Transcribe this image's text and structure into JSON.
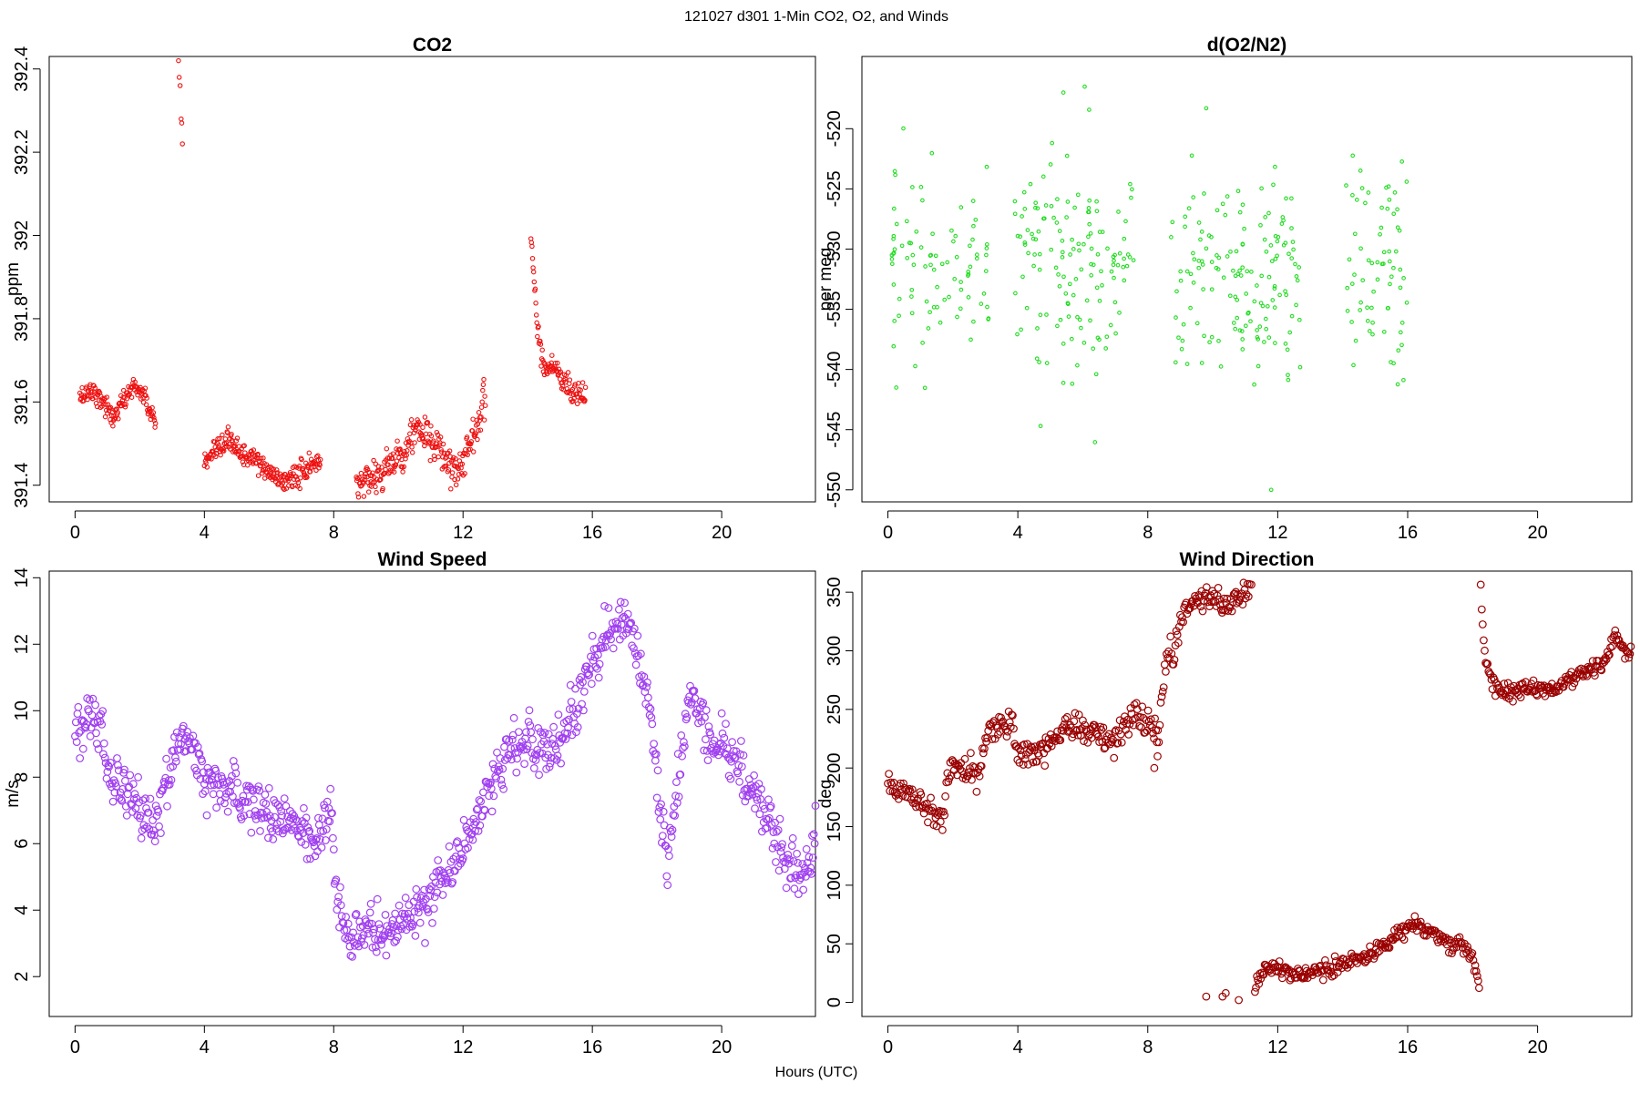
{
  "figure": {
    "title": "121027   d301   1-Min CO2, O2, and Winds",
    "xlabel": "Hours (UTC)"
  },
  "chart_data": [
    {
      "type": "scatter",
      "title": "CO2",
      "ylabel": "ppm",
      "xlim": [
        -0.8,
        22.9
      ],
      "ylim": [
        391.36,
        392.43
      ],
      "xticks": [
        0,
        4,
        8,
        12,
        16,
        20
      ],
      "yticks": [
        391.4,
        391.6,
        391.8,
        392.0,
        392.2,
        392.4
      ],
      "color": "#ee1111",
      "marker_r": 2.2,
      "segments": [
        {
          "x": [
            0.15,
            0.5,
            0.9,
            1.15,
            1.4,
            1.8,
            2.1,
            2.3,
            2.5
          ],
          "y": [
            391.61,
            391.63,
            391.6,
            391.56,
            391.59,
            391.64,
            391.62,
            391.58,
            391.55
          ],
          "noise": 0.012
        },
        {
          "x": [
            4.0,
            4.4,
            4.8,
            5.2,
            5.6,
            6.0,
            6.4,
            6.8,
            7.2,
            7.6
          ],
          "y": [
            391.45,
            391.48,
            391.51,
            391.47,
            391.46,
            391.43,
            391.41,
            391.42,
            391.44,
            391.46
          ],
          "noise": 0.013
        },
        {
          "x": [
            8.7,
            9.1,
            9.5,
            9.9,
            10.3,
            10.6,
            11.0,
            11.3,
            11.6,
            11.9,
            12.2,
            12.5,
            12.7
          ],
          "y": [
            391.4,
            391.42,
            391.43,
            391.46,
            391.5,
            391.54,
            391.5,
            391.48,
            391.45,
            391.44,
            391.5,
            391.56,
            391.62
          ],
          "noise": 0.022
        },
        {
          "x": [
            14.1,
            14.2,
            14.3,
            14.5,
            14.8,
            15.1,
            15.4,
            15.8
          ],
          "y": [
            392.0,
            391.9,
            391.78,
            391.68,
            391.69,
            391.65,
            391.63,
            391.61
          ],
          "noise": 0.015
        }
      ],
      "spikes": {
        "x": [
          3.2,
          3.22,
          3.25,
          3.28,
          3.3,
          3.32
        ],
        "y": [
          392.42,
          392.38,
          392.36,
          392.28,
          392.27,
          392.22
        ]
      }
    },
    {
      "type": "scatter",
      "title": "d(O2/N2)",
      "ylabel": "per meg",
      "xlim": [
        -0.8,
        22.9
      ],
      "ylim": [
        -551,
        -514
      ],
      "xticks": [
        0,
        4,
        8,
        12,
        16,
        20
      ],
      "yticks": [
        -520,
        -525,
        -530,
        -535,
        -540,
        -545,
        -550
      ],
      "color": "#22dd22",
      "marker_r": 1.8,
      "segments": [
        {
          "x": [
            0.1,
            3.2
          ],
          "center": -532,
          "spread": 5.5,
          "count": 90
        },
        {
          "x": [
            3.9,
            7.6
          ],
          "center": -531,
          "spread": 6.0,
          "count": 140
        },
        {
          "x": [
            8.7,
            12.7
          ],
          "center": -532,
          "spread": 6.0,
          "count": 150
        },
        {
          "x": [
            14.1,
            16.0
          ],
          "center": -532,
          "spread": 6.0,
          "count": 70
        }
      ],
      "outliers": {
        "x": [
          4.7,
          11.8,
          5.4,
          9.8
        ],
        "y": [
          -544.7,
          -550.0,
          -517.0,
          -518.3
        ]
      }
    },
    {
      "type": "scatter",
      "title": "Wind Speed",
      "ylabel": "m/s",
      "xlim": [
        -0.8,
        22.9
      ],
      "ylim": [
        0.8,
        14.2
      ],
      "xticks": [
        0,
        4,
        8,
        12,
        16,
        20
      ],
      "yticks": [
        2,
        4,
        6,
        8,
        10,
        12,
        14
      ],
      "color": "#a040f0",
      "marker_r": 3.8,
      "track": {
        "x": [
          0,
          0.5,
          0.8,
          1.0,
          1.5,
          2.0,
          2.5,
          3.0,
          3.3,
          3.6,
          4.0,
          5.0,
          6.0,
          6.5,
          7.0,
          7.5,
          7.9,
          8.1,
          8.5,
          9.0,
          9.5,
          10.0,
          10.5,
          11.0,
          11.5,
          12.0,
          12.5,
          13.0,
          13.5,
          14.0,
          14.5,
          15.0,
          15.5,
          16.0,
          16.5,
          17.0,
          17.5,
          17.8,
          18.0,
          18.3,
          18.6,
          19.0,
          19.3,
          19.6,
          20.0,
          20.5,
          21.0,
          21.5,
          22.0,
          22.5,
          22.9
        ],
        "y": [
          9.5,
          10.0,
          9.4,
          8.3,
          7.7,
          6.9,
          6.5,
          8.5,
          9.3,
          8.8,
          7.9,
          7.5,
          7.0,
          6.8,
          6.3,
          6.1,
          7.4,
          4.2,
          3.0,
          3.5,
          3.3,
          3.4,
          3.9,
          4.5,
          5.0,
          6.0,
          7.0,
          8.0,
          9.0,
          9.1,
          8.5,
          9.0,
          10.0,
          11.5,
          12.2,
          12.8,
          11.5,
          10.0,
          8.0,
          5.2,
          7.5,
          10.5,
          10.2,
          9.0,
          8.8,
          8.3,
          7.5,
          6.5,
          5.6,
          5.0,
          6.2
        ],
        "dx": 0.025,
        "noise": 0.38
      }
    },
    {
      "type": "scatter",
      "title": "Wind Direction",
      "ylabel": "deg",
      "xlim": [
        -0.8,
        22.9
      ],
      "ylim": [
        -12,
        368
      ],
      "xticks": [
        0,
        4,
        8,
        12,
        16,
        20
      ],
      "yticks": [
        0,
        50,
        100,
        150,
        200,
        250,
        300,
        350
      ],
      "color": "#9a0000",
      "marker_r": 3.8,
      "tracks": [
        {
          "x": [
            0,
            0.5,
            1.0,
            1.5,
            1.7,
            1.8,
            2.0,
            2.5,
            2.8,
            3.0,
            3.5,
            3.8,
            4.0,
            4.5,
            5.0,
            5.5,
            6.0,
            6.5,
            7.0,
            7.5,
            8.0,
            8.3,
            8.6,
            8.8,
            9.0,
            9.3,
            9.5,
            10.0,
            10.5,
            10.8,
            11.2
          ],
          "y": [
            185,
            180,
            172,
            162,
            158,
            190,
            202,
            198,
            195,
            228,
            236,
            240,
            215,
            210,
            222,
            238,
            232,
            228,
            226,
            245,
            242,
            232,
            300,
            295,
            325,
            342,
            345,
            345,
            340,
            345,
            355
          ],
          "dx": 0.03,
          "noise": 6
        },
        {
          "x": [
            11.3,
            11.6,
            12.0,
            12.5,
            13.0,
            13.5,
            14.0,
            14.5,
            15.0,
            15.5,
            16.0,
            16.3,
            16.8,
            17.3,
            17.8,
            18.0,
            18.2
          ],
          "y": [
            12,
            28,
            30,
            22,
            25,
            28,
            33,
            38,
            42,
            55,
            65,
            68,
            58,
            50,
            48,
            35,
            12
          ],
          "dx": 0.03,
          "noise": 3.5
        },
        {
          "x": [
            18.25,
            18.35,
            18.5,
            18.8,
            19.2,
            19.6,
            20.0,
            20.5,
            21.0,
            21.5,
            22.0,
            22.4,
            22.6,
            22.9
          ],
          "y": [
            355,
            300,
            278,
            265,
            265,
            270,
            268,
            266,
            275,
            283,
            288,
            315,
            302,
            298
          ],
          "dx": 0.03,
          "noise": 3.5
        }
      ],
      "outliers": {
        "x": [
          9.8,
          10.3,
          10.4,
          10.8,
          8.2,
          8.3
        ],
        "y": [
          5,
          5,
          8,
          2,
          200,
          210
        ]
      }
    }
  ]
}
